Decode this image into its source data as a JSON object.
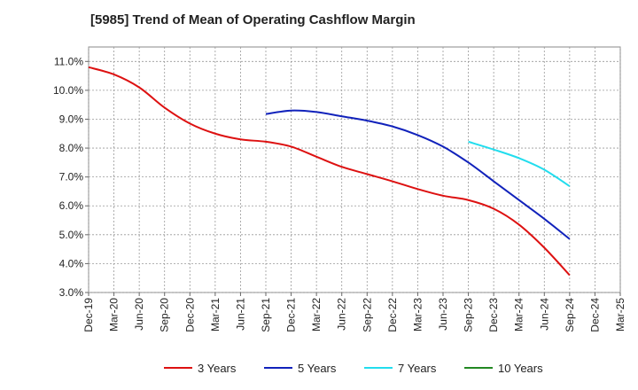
{
  "chart_data": {
    "type": "line",
    "title": "[5985]  Trend of Mean of Operating Cashflow Margin",
    "xlabel": "",
    "ylabel": "",
    "x_categories": [
      "Dec-19",
      "Mar-20",
      "Jun-20",
      "Sep-20",
      "Dec-20",
      "Mar-21",
      "Jun-21",
      "Sep-21",
      "Dec-21",
      "Mar-22",
      "Jun-22",
      "Sep-22",
      "Dec-22",
      "Mar-23",
      "Jun-23",
      "Sep-23",
      "Dec-23",
      "Mar-24",
      "Jun-24",
      "Sep-24",
      "Dec-24",
      "Mar-25"
    ],
    "ylim": [
      3.0,
      11.5
    ],
    "yticks": [
      3.0,
      4.0,
      5.0,
      6.0,
      7.0,
      8.0,
      9.0,
      10.0,
      11.0
    ],
    "ytick_labels": [
      "3.0%",
      "4.0%",
      "5.0%",
      "6.0%",
      "7.0%",
      "8.0%",
      "9.0%",
      "10.0%",
      "11.0%"
    ],
    "grid": true,
    "legend_position": "bottom",
    "series": [
      {
        "name": "3 Years",
        "color": "#dd1111",
        "x": [
          0,
          1,
          2,
          3,
          4,
          5,
          6,
          7,
          8,
          9,
          10,
          11,
          12,
          13,
          14,
          15,
          16,
          17,
          18,
          19
        ],
        "values": [
          10.8,
          10.55,
          10.1,
          9.4,
          8.85,
          8.5,
          8.3,
          8.22,
          8.05,
          7.7,
          7.35,
          7.1,
          6.85,
          6.58,
          6.35,
          6.2,
          5.9,
          5.35,
          4.55,
          3.6
        ]
      },
      {
        "name": "5 Years",
        "color": "#1122bb",
        "x": [
          7,
          8,
          9,
          10,
          11,
          12,
          13,
          14,
          15,
          16,
          17,
          18,
          19
        ],
        "values": [
          9.18,
          9.3,
          9.25,
          9.1,
          8.95,
          8.75,
          8.45,
          8.05,
          7.5,
          6.85,
          6.2,
          5.55,
          4.85
        ]
      },
      {
        "name": "7 Years",
        "color": "#22ddee",
        "x": [
          15,
          16,
          17,
          18,
          19
        ],
        "values": [
          8.22,
          7.95,
          7.65,
          7.25,
          6.68
        ]
      },
      {
        "name": "10 Years",
        "color": "#228822",
        "x": [],
        "values": []
      }
    ]
  }
}
